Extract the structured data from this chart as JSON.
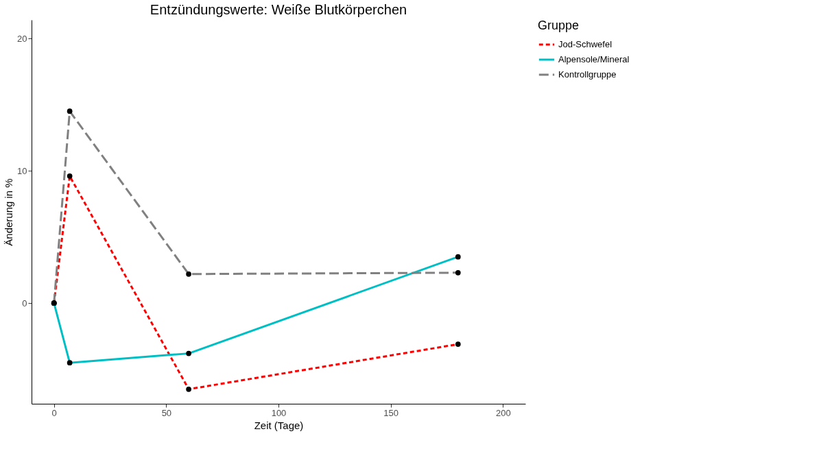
{
  "chart_data": {
    "type": "line",
    "title": "Entzündungswerte: Weiße Blutkörperchen",
    "xlabel": "Zeit (Tage)",
    "ylabel": "Änderung in %",
    "legend_title": "Gruppe",
    "x": [
      0,
      7,
      60,
      180
    ],
    "series": [
      {
        "name": "Jod-Schwefel",
        "color": "#ff0000",
        "line_style": "dashed",
        "values": [
          0,
          9.6,
          -6.5,
          -3.1
        ]
      },
      {
        "name": "Alpensole/Mineral",
        "color": "#00bfc4",
        "line_style": "solid",
        "values": [
          0,
          -4.5,
          -3.8,
          3.5
        ]
      },
      {
        "name": "Kontrollgruppe",
        "color": "#808080",
        "line_style": "longdash",
        "values": [
          0,
          14.5,
          2.2,
          2.3
        ]
      }
    ],
    "xlim": [
      -10,
      210
    ],
    "ylim": [
      -7.6,
      21.4
    ],
    "xticks": [
      0,
      50,
      100,
      150,
      200
    ],
    "yticks": [
      0,
      10,
      20
    ],
    "grid": false,
    "legend": "right",
    "marker": "circle"
  }
}
